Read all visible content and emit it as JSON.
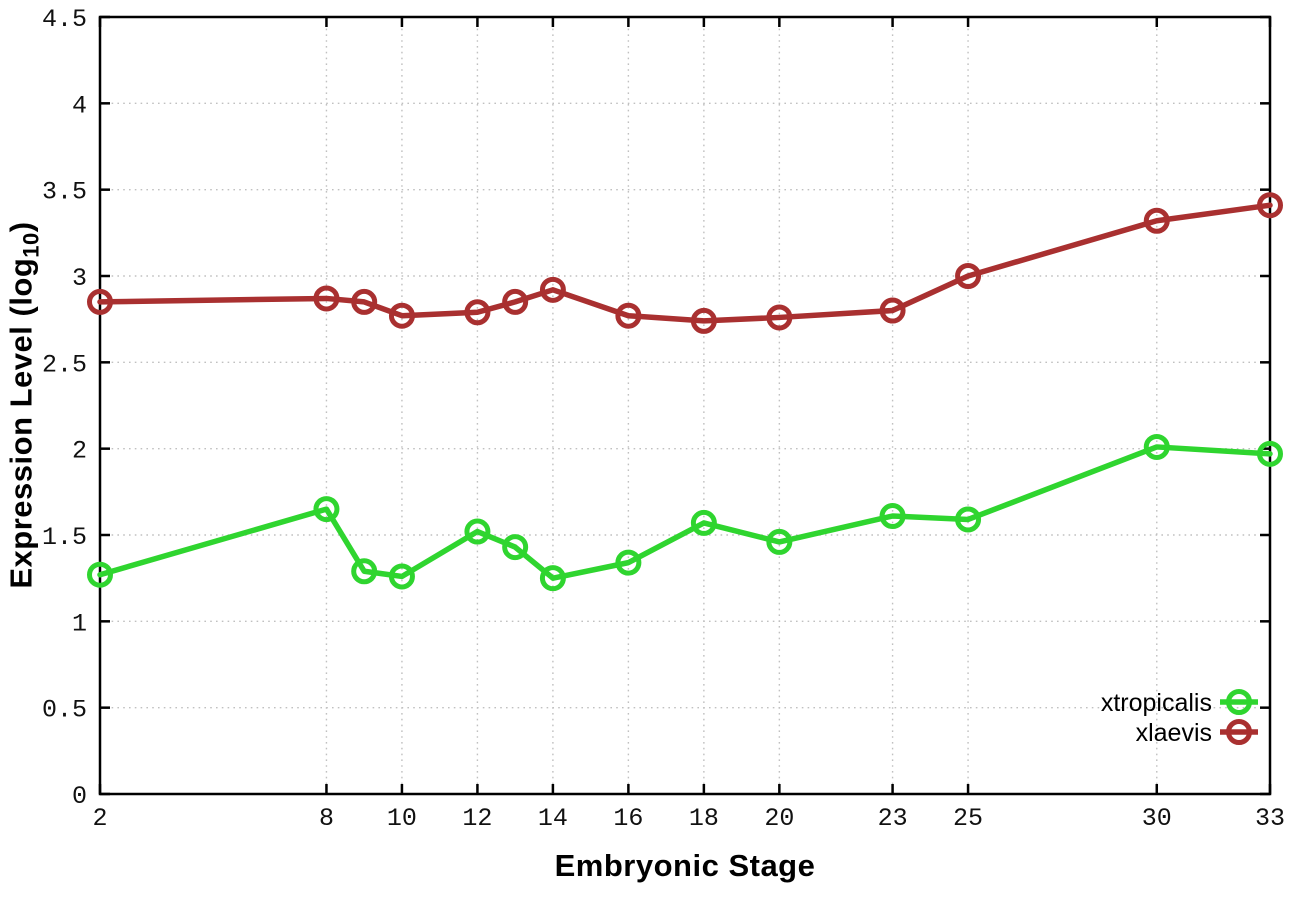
{
  "chart_data": {
    "type": "line",
    "title": "",
    "xlabel": "Embryonic Stage",
    "ylabel": "Expression Level (log10)",
    "ylabel_parts": {
      "prefix": "Expression Level (log",
      "sub": "10",
      "suffix": ")"
    },
    "xlim": [
      2,
      33
    ],
    "ylim": [
      0,
      4.5
    ],
    "x_ticks": [
      2,
      8,
      10,
      12,
      14,
      16,
      18,
      20,
      23,
      25,
      30,
      33
    ],
    "y_ticks": [
      0,
      0.5,
      1,
      1.5,
      2,
      2.5,
      3,
      3.5,
      4,
      4.5
    ],
    "grid": true,
    "grid_style": "dotted",
    "legend": {
      "position": "inside-bottom-right",
      "entries": [
        "xtropicalis",
        "xlaevis"
      ]
    },
    "x": [
      2,
      8,
      9,
      10,
      12,
      13,
      14,
      16,
      18,
      20,
      23,
      25,
      30,
      33
    ],
    "series": [
      {
        "name": "xtropicalis",
        "color": "#2fd52f",
        "marker": "open-circle",
        "values": [
          1.27,
          1.65,
          1.29,
          1.26,
          1.52,
          1.43,
          1.25,
          1.34,
          1.57,
          1.46,
          1.61,
          1.59,
          2.01,
          1.97
        ]
      },
      {
        "name": "xlaevis",
        "color": "#a93030",
        "marker": "open-circle",
        "values": [
          2.85,
          2.87,
          2.85,
          2.77,
          2.79,
          2.85,
          2.92,
          2.77,
          2.74,
          2.76,
          2.8,
          3.0,
          3.32,
          3.41
        ]
      }
    ],
    "colors": {
      "grid": "#c0c0c0",
      "border": "#000000",
      "background": "#ffffff",
      "tick_text": "#111111"
    }
  }
}
